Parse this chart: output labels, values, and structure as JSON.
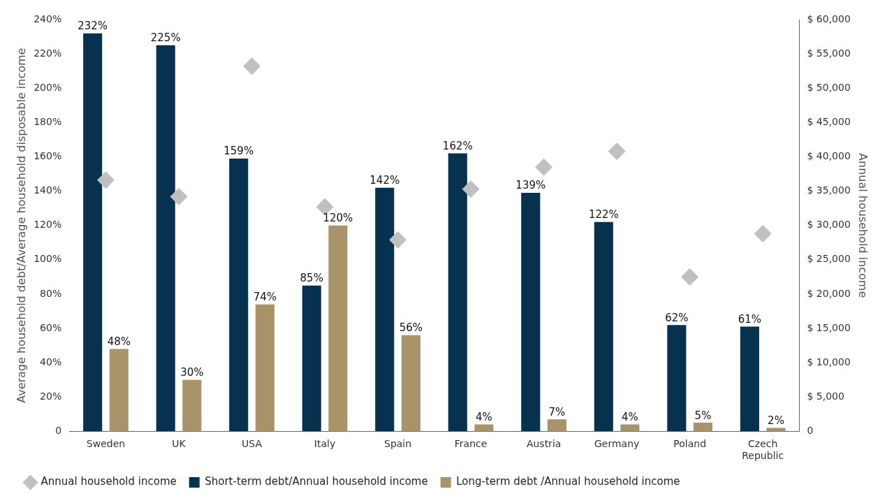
{
  "chart_data": {
    "type": "bar",
    "categories": [
      "Sweden",
      "UK",
      "USA",
      "Italy",
      "Spain",
      "France",
      "Austria",
      "Germany",
      "Poland",
      "Czech Republic"
    ],
    "ylabel": "Average household debt/Average household disposable income",
    "y2label": "Annual household income",
    "ylim": [
      0,
      240
    ],
    "yticks": [
      {
        "value": 0,
        "label": "0"
      },
      {
        "value": 20,
        "label": "20%"
      },
      {
        "value": 40,
        "label": "40%"
      },
      {
        "value": 60,
        "label": "60%"
      },
      {
        "value": 80,
        "label": "80%"
      },
      {
        "value": 100,
        "label": "100%"
      },
      {
        "value": 120,
        "label": "120%"
      },
      {
        "value": 140,
        "label": "140%"
      },
      {
        "value": 160,
        "label": "160%"
      },
      {
        "value": 180,
        "label": "180%"
      },
      {
        "value": 200,
        "label": "200%"
      },
      {
        "value": 220,
        "label": "220%"
      },
      {
        "value": 240,
        "label": "240%"
      }
    ],
    "y2lim": [
      0,
      60000
    ],
    "y2ticks": [
      {
        "value": 0,
        "label": "0"
      },
      {
        "value": 5000,
        "label": "$ 5,000"
      },
      {
        "value": 10000,
        "label": "$ 10,000"
      },
      {
        "value": 15000,
        "label": "$ 15,000"
      },
      {
        "value": 20000,
        "label": "$ 20,000"
      },
      {
        "value": 25000,
        "label": "$ 25,000"
      },
      {
        "value": 30000,
        "label": "$ 30,000"
      },
      {
        "value": 35000,
        "label": "$ 35,000"
      },
      {
        "value": 40000,
        "label": "$ 40,000"
      },
      {
        "value": 45000,
        "label": "$ 45,000"
      },
      {
        "value": 50000,
        "label": "$ 50,000"
      },
      {
        "value": 55000,
        "label": "$ 55,000"
      },
      {
        "value": 60000,
        "label": "$ 60,000"
      }
    ],
    "grid": false,
    "legend": "bottom",
    "series": [
      {
        "name": "Annual household income",
        "type": "scatter",
        "axis": "y2",
        "marker": "diamond",
        "color": "#c0c0c0",
        "values": [
          36600,
          34200,
          53200,
          32700,
          27900,
          35300,
          38500,
          40800,
          22500,
          28800
        ]
      },
      {
        "name": "Short-term debt/Annual household income",
        "color": "#06314f",
        "values": [
          232,
          225,
          159,
          85,
          142,
          162,
          139,
          122,
          62,
          61
        ],
        "value_labels": [
          "232%",
          "225%",
          "159%",
          "85%",
          "142%",
          "162%",
          "139%",
          "122%",
          "62%",
          "61%"
        ]
      },
      {
        "name": "Long-term debt /Annual household income",
        "color": "#a89468",
        "values": [
          48,
          30,
          74,
          120,
          56,
          4,
          7,
          4,
          5,
          2
        ],
        "value_labels": [
          "48%",
          "30%",
          "74%",
          "120%",
          "56%",
          "4%",
          "7%",
          "4%",
          "5%",
          "2%"
        ]
      }
    ]
  }
}
